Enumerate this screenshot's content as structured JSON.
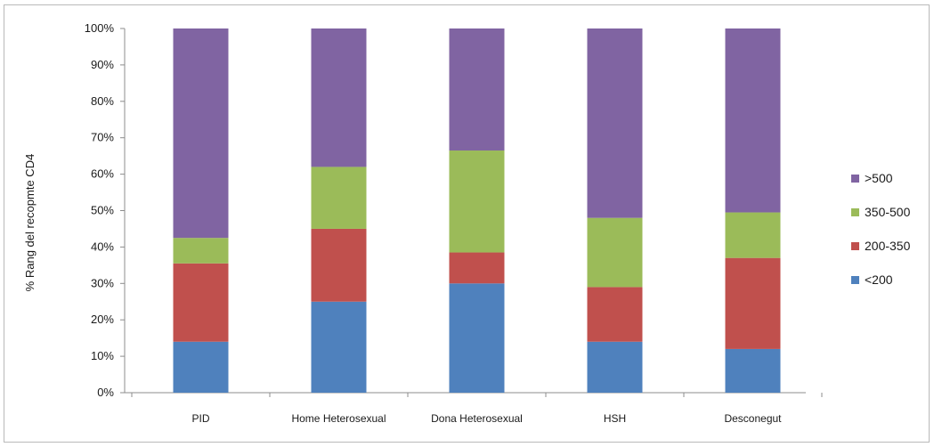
{
  "chart_data": {
    "type": "bar",
    "stacked": true,
    "percent": true,
    "categories": [
      "PID",
      "Home Heterosexual",
      "Dona Heterosexual",
      "HSH",
      "Desconegut"
    ],
    "series": [
      {
        "name": "<200",
        "color": "#4f81bd",
        "values": [
          14,
          25,
          30,
          14,
          12
        ]
      },
      {
        "name": "200-350",
        "color": "#c0504d",
        "values": [
          21.5,
          20,
          8.5,
          15,
          25
        ]
      },
      {
        "name": "350-500",
        "color": "#9bbb59",
        "values": [
          7,
          17,
          28,
          19,
          12.5
        ]
      },
      {
        "name": ">500",
        "color": "#8064a2",
        "values": [
          57.5,
          38,
          33.5,
          52,
          50.5
        ]
      }
    ],
    "ylabel": "% Rang del recopmte CD4",
    "xlabel": "",
    "ylim": [
      0,
      100
    ],
    "yticks": [
      "0%",
      "10%",
      "20%",
      "30%",
      "40%",
      "50%",
      "60%",
      "70%",
      "80%",
      "90%",
      "100%"
    ],
    "grid": false,
    "legend_position": "right"
  }
}
